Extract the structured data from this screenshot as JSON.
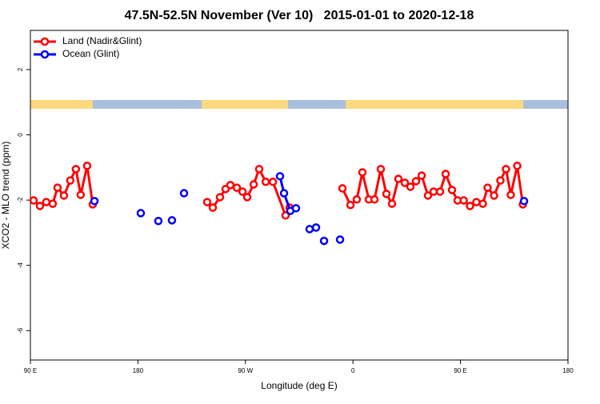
{
  "chart_data": {
    "type": "line",
    "title": "47.5N-52.5N November (Ver 10)   2015-01-01 to 2020-12-18",
    "xlabel": "Longitude (deg E)",
    "ylabel": "XCO2 - MLO trend (ppm)",
    "xlim": [
      90,
      540
    ],
    "ylim": [
      -6.9,
      3.2
    ],
    "xticks": [
      {
        "value": 90,
        "label": "90 E"
      },
      180,
      {
        "value": 270,
        "label": "90 W"
      },
      {
        "value": 360,
        "label": "0"
      },
      {
        "value": 450,
        "label": "90 E"
      },
      {
        "value": 540,
        "label": "180"
      }
    ],
    "yticks": [
      -6,
      -4,
      -2,
      0,
      2
    ],
    "legend": "top-left",
    "series": [
      {
        "name": "Land (Nadir&Glint)",
        "color": "#ff0000",
        "x": [
          92.7,
          98.0,
          103.3,
          108.7,
          112.7,
          118.1,
          123.4,
          128.1,
          132.1,
          137.5,
          142.2,
          null,
          238.0,
          242.7,
          248.7,
          253.4,
          257.4,
          262.8,
          267.5,
          271.5,
          276.9,
          281.5,
          287.0,
          293.0,
          303.6,
          307.0,
          null,
          351.2,
          357.9,
          363.2,
          367.9,
          373.3,
          378.0,
          383.3,
          388.0,
          392.7,
          398.0,
          403.4,
          408.1,
          412.8,
          417.5,
          422.8,
          427.5,
          432.9,
          437.6,
          442.9,
          447.6,
          452.7,
          458.0,
          463.3,
          468.7,
          472.7,
          478.1,
          483.4,
          488.1,
          492.1,
          497.5,
          502.2
        ],
        "values": [
          -2.01,
          -2.18,
          -2.06,
          -2.11,
          -1.62,
          -1.86,
          -1.4,
          -1.05,
          -1.84,
          -0.95,
          -2.13,
          null,
          -2.06,
          -2.23,
          -1.91,
          -1.66,
          -1.54,
          -1.62,
          -1.74,
          -1.91,
          -1.52,
          -1.05,
          -1.44,
          -1.44,
          -2.47,
          -2.23,
          null,
          -1.64,
          -2.15,
          -1.98,
          -1.15,
          -1.98,
          -1.98,
          -1.05,
          -1.81,
          -2.11,
          -1.35,
          -1.47,
          -1.59,
          -1.42,
          -1.25,
          -1.86,
          -1.74,
          -1.74,
          -1.2,
          -1.69,
          -2.01,
          -2.01,
          -2.18,
          -2.06,
          -2.11,
          -1.62,
          -1.86,
          -1.4,
          -1.05,
          -1.84,
          -0.95,
          -2.13
        ]
      },
      {
        "name": "Ocean (Glint)",
        "color": "#0000ff",
        "x": [
          143.6,
          null,
          182.4,
          null,
          197.1,
          null,
          208.5,
          null,
          218.6,
          null,
          298.9,
          302.3,
          307.6,
          312.3,
          null,
          323.7,
          null,
          329.1,
          null,
          335.8,
          null,
          349.2,
          null,
          503.2
        ],
        "values": [
          -2.03,
          null,
          -2.4,
          null,
          -2.64,
          null,
          -2.62,
          null,
          -1.79,
          null,
          -1.27,
          -1.79,
          -2.33,
          -2.25,
          null,
          -2.89,
          null,
          -2.84,
          null,
          -3.25,
          null,
          -3.21,
          null,
          -2.03
        ]
      }
    ]
  }
}
